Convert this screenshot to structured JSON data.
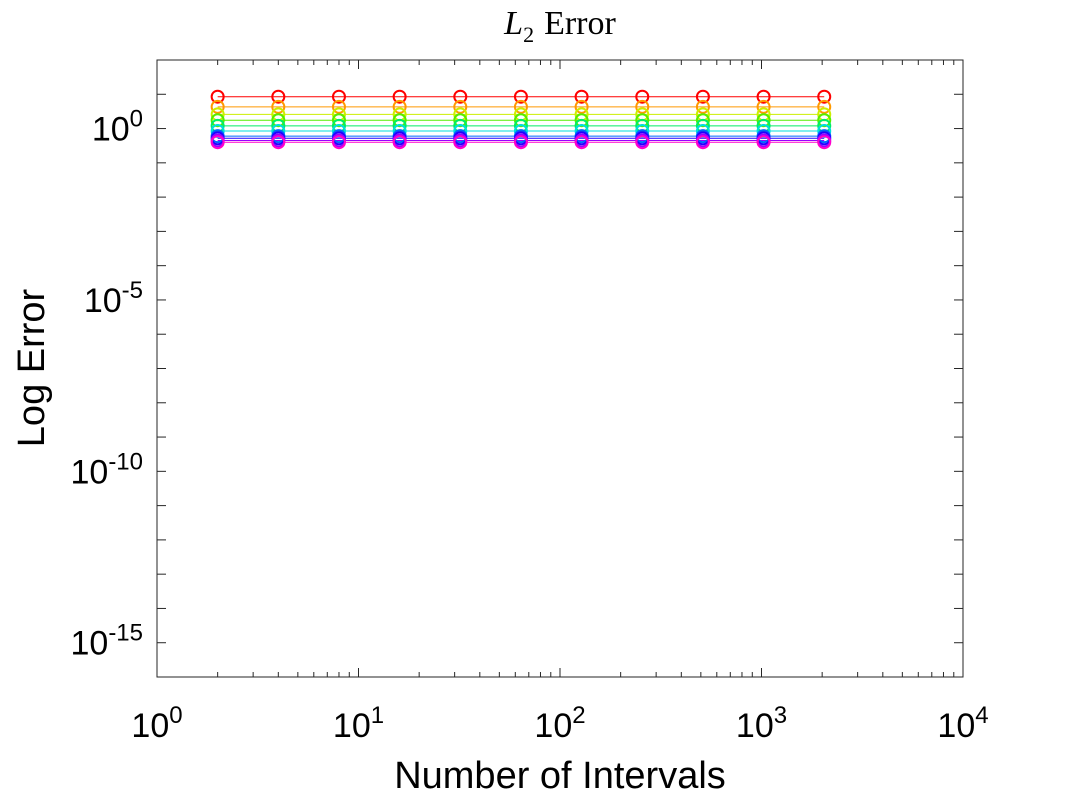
{
  "chart_data": {
    "type": "line",
    "title_var": "L",
    "title_sub": "2",
    "title_rest": "Error",
    "xlabel": "Number of Intervals",
    "ylabel": "Log Error",
    "xscale": "log",
    "yscale": "log",
    "xlim": [
      1,
      10000
    ],
    "ylim": [
      1e-16,
      100.0
    ],
    "grid": false,
    "x_ticks": [
      {
        "base": "10",
        "exp": "0",
        "value": 1
      },
      {
        "base": "10",
        "exp": "1",
        "value": 10
      },
      {
        "base": "10",
        "exp": "2",
        "value": 100
      },
      {
        "base": "10",
        "exp": "3",
        "value": 1000
      },
      {
        "base": "10",
        "exp": "4",
        "value": 10000
      }
    ],
    "y_ticks": [
      {
        "base": "10",
        "exp": "0",
        "value": 1
      },
      {
        "base": "10",
        "exp": "-5",
        "value": 1e-05
      },
      {
        "base": "10",
        "exp": "-10",
        "value": 1e-10
      },
      {
        "base": "10",
        "exp": "-15",
        "value": 1e-15
      }
    ],
    "x": [
      2,
      4,
      8,
      16,
      32,
      64,
      128,
      256,
      512,
      1024,
      2048
    ],
    "marker": "circle",
    "series": [
      {
        "color": "#ff0000",
        "value": 8.5
      },
      {
        "color": "#ff9900",
        "value": 4.3
      },
      {
        "color": "#ccee00",
        "value": 2.6
      },
      {
        "color": "#55ee00",
        "value": 1.75
      },
      {
        "color": "#00ee66",
        "value": 1.2
      },
      {
        "color": "#00dddd",
        "value": 0.85
      },
      {
        "color": "#0066ff",
        "value": 0.6
      },
      {
        "color": "#2200ff",
        "value": 0.52
      },
      {
        "color": "#9900ff",
        "value": 0.45
      },
      {
        "color": "#ff00cc",
        "value": 0.4
      }
    ]
  }
}
